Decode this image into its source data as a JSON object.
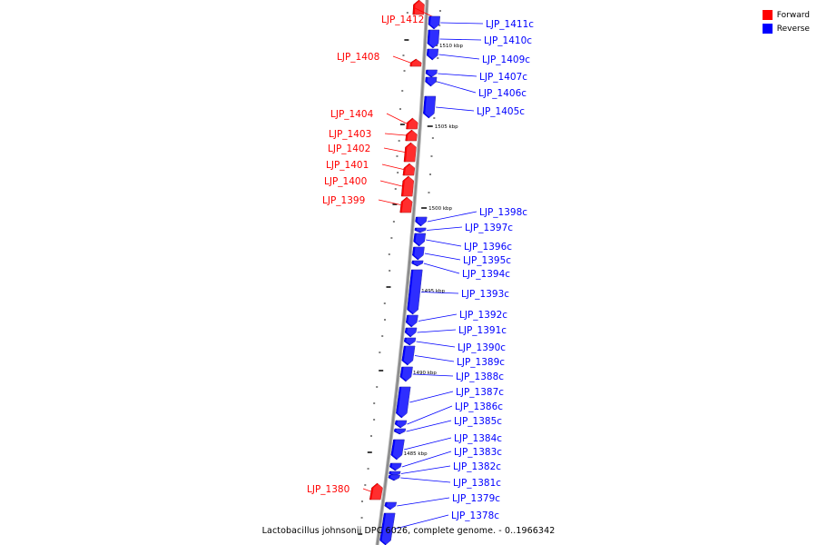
{
  "legend": [
    {
      "label": "Forward",
      "color": "#ff0000"
    },
    {
      "label": "Reverse",
      "color": "#0000ff"
    }
  ],
  "caption": "Lactobacillus johnsonii DPC 6026, complete genome. - 0..1966342",
  "colors": {
    "forward": "#ff0000",
    "reverse": "#0000ff",
    "backbone": "#888888"
  },
  "tick_labels": [
    "1510 kbp",
    "1505 kbp",
    "1500 kbp",
    "1495 kbp",
    "1490 kbp",
    "1485 kbp"
  ],
  "genes": [
    {
      "name": "LJP_1412",
      "strand": "forward"
    },
    {
      "name": "LJP_1411c",
      "strand": "reverse"
    },
    {
      "name": "LJP_1410c",
      "strand": "reverse"
    },
    {
      "name": "LJP_1409c",
      "strand": "reverse"
    },
    {
      "name": "LJP_1408",
      "strand": "forward"
    },
    {
      "name": "LJP_1407c",
      "strand": "reverse"
    },
    {
      "name": "LJP_1406c",
      "strand": "reverse"
    },
    {
      "name": "LJP_1405c",
      "strand": "reverse"
    },
    {
      "name": "LJP_1404",
      "strand": "forward"
    },
    {
      "name": "LJP_1403",
      "strand": "forward"
    },
    {
      "name": "LJP_1402",
      "strand": "forward"
    },
    {
      "name": "LJP_1401",
      "strand": "forward"
    },
    {
      "name": "LJP_1400",
      "strand": "forward"
    },
    {
      "name": "LJP_1399",
      "strand": "forward"
    },
    {
      "name": "LJP_1398c",
      "strand": "reverse"
    },
    {
      "name": "LJP_1397c",
      "strand": "reverse"
    },
    {
      "name": "LJP_1396c",
      "strand": "reverse"
    },
    {
      "name": "LJP_1395c",
      "strand": "reverse"
    },
    {
      "name": "LJP_1394c",
      "strand": "reverse"
    },
    {
      "name": "LJP_1393c",
      "strand": "reverse"
    },
    {
      "name": "LJP_1392c",
      "strand": "reverse"
    },
    {
      "name": "LJP_1391c",
      "strand": "reverse"
    },
    {
      "name": "LJP_1390c",
      "strand": "reverse"
    },
    {
      "name": "LJP_1389c",
      "strand": "reverse"
    },
    {
      "name": "LJP_1388c",
      "strand": "reverse"
    },
    {
      "name": "LJP_1387c",
      "strand": "reverse"
    },
    {
      "name": "LJP_1386c",
      "strand": "reverse"
    },
    {
      "name": "LJP_1385c",
      "strand": "reverse"
    },
    {
      "name": "LJP_1384c",
      "strand": "reverse"
    },
    {
      "name": "LJP_1383c",
      "strand": "reverse"
    },
    {
      "name": "LJP_1382c",
      "strand": "reverse"
    },
    {
      "name": "LJP_1381c",
      "strand": "reverse"
    },
    {
      "name": "LJP_1380",
      "strand": "forward"
    },
    {
      "name": "LJP_1379c",
      "strand": "reverse"
    },
    {
      "name": "LJP_1378c",
      "strand": "reverse"
    }
  ]
}
